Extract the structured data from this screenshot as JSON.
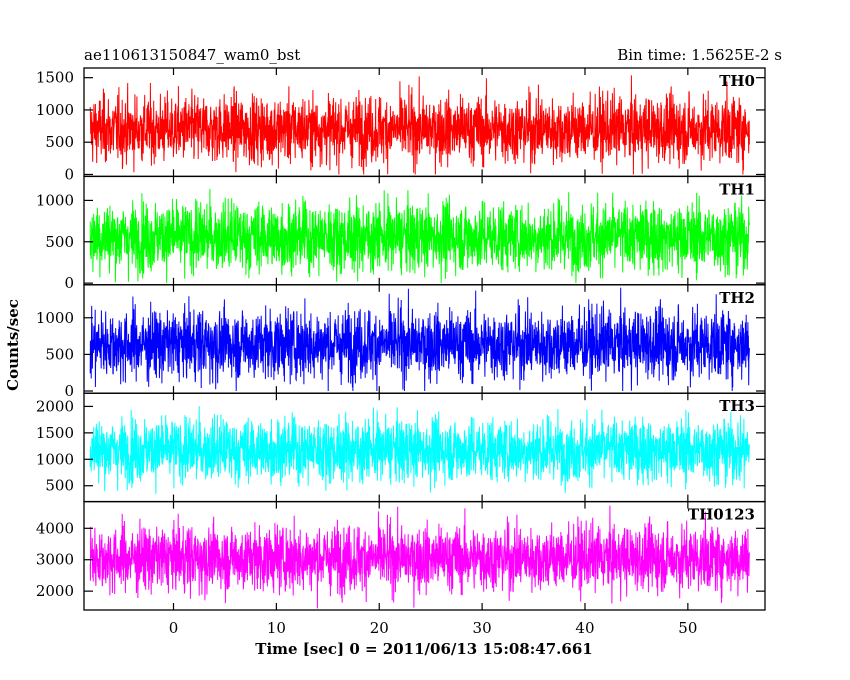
{
  "chart_data": {
    "type": "line",
    "title_left": "ae110613150847_wam0_bst",
    "title_right": "Bin time: 1.5625E-2 s",
    "xlabel": "Time [sec] 0 = 2011/06/13 15:08:47.661",
    "ylabel": "Counts/sec",
    "xlim": [
      -8.7,
      57.5
    ],
    "x_ticks": [
      0,
      10,
      20,
      30,
      40,
      50
    ],
    "x_data_range": [
      -8.1,
      56.0
    ],
    "grid": false,
    "panels": [
      {
        "name": "TH0",
        "color": "#ff0000",
        "ylim": [
          -30,
          1650
        ],
        "y_ticks": [
          0,
          500,
          1000,
          1500
        ],
        "y_tick_labels": [
          "0",
          "500",
          "1000",
          "1500"
        ],
        "data_min": 0,
        "data_mean": 700,
        "data_max": 1600,
        "data_std": 260
      },
      {
        "name": "TH1",
        "color": "#00ff00",
        "ylim": [
          -20,
          1290
        ],
        "y_ticks": [
          0,
          500,
          1000
        ],
        "y_tick_labels": [
          "0",
          "500",
          "1000"
        ],
        "data_min": 0,
        "data_mean": 560,
        "data_max": 1200,
        "data_std": 210
      },
      {
        "name": "TH2",
        "color": "#0000ff",
        "ylim": [
          -30,
          1450
        ],
        "y_ticks": [
          0,
          500,
          1000
        ],
        "y_tick_labels": [
          "0",
          "500",
          "1000"
        ],
        "data_min": 0,
        "data_mean": 640,
        "data_max": 1420,
        "data_std": 240
      },
      {
        "name": "TH3",
        "color": "#00ffff",
        "ylim": [
          200,
          2250
        ],
        "y_ticks": [
          500,
          1000,
          1500,
          2000
        ],
        "y_tick_labels": [
          "500",
          "1000",
          "1500",
          "2000"
        ],
        "data_min": 350,
        "data_mean": 1180,
        "data_max": 2180,
        "data_std": 300
      },
      {
        "name": "TH0123",
        "color": "#ff00ff",
        "ylim": [
          1400,
          4850
        ],
        "y_ticks": [
          2000,
          3000,
          4000
        ],
        "y_tick_labels": [
          "2000",
          "3000",
          "4000"
        ],
        "data_min": 1450,
        "data_mean": 3050,
        "data_max": 4780,
        "data_std": 520
      }
    ]
  }
}
